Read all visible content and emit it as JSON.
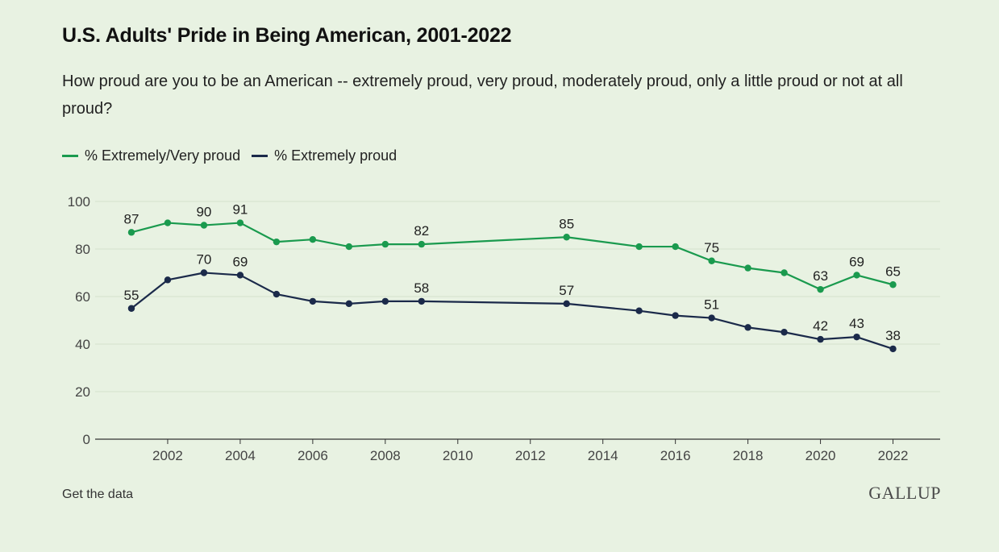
{
  "header": {
    "title": "U.S. Adults' Pride in Being American, 2001-2022",
    "subtitle": "How proud are you to be an American -- extremely proud, very proud, moderately proud, only a little proud or not at all proud?"
  },
  "footer": {
    "get_data_label": "Get the data",
    "logo_text": "GALLUP"
  },
  "colors": {
    "extremely_very": "#1a9a4e",
    "extremely": "#1b2a4a",
    "grid": "#d3e3cc",
    "axis": "#333333",
    "background": "#e8f2e2"
  },
  "chart_data": {
    "type": "line",
    "title": "U.S. Adults' Pride in Being American, 2001-2022",
    "xlabel": "",
    "ylabel": "",
    "xlim": [
      2000,
      2023.3
    ],
    "ylim": [
      0,
      100
    ],
    "x_ticks": [
      2002,
      2004,
      2006,
      2008,
      2010,
      2012,
      2014,
      2016,
      2018,
      2020,
      2022
    ],
    "y_ticks": [
      0,
      20,
      40,
      60,
      80,
      100
    ],
    "grid": true,
    "legend_position": "top-left",
    "series": [
      {
        "name": "% Extremely/Very proud",
        "color": "#1a9a4e",
        "x": [
          2001,
          2002,
          2003,
          2004,
          2005,
          2006,
          2007,
          2008,
          2009,
          2013,
          2015,
          2016,
          2017,
          2018,
          2019,
          2020,
          2021,
          2022
        ],
        "values": [
          87,
          91,
          90,
          91,
          83,
          84,
          81,
          82,
          82,
          85,
          81,
          81,
          75,
          72,
          70,
          63,
          69,
          65
        ],
        "labeled_x": [
          2001,
          2003,
          2004,
          2009,
          2013,
          2017,
          2020,
          2021,
          2022
        ]
      },
      {
        "name": "% Extremely proud",
        "color": "#1b2a4a",
        "x": [
          2001,
          2002,
          2003,
          2004,
          2005,
          2006,
          2007,
          2008,
          2009,
          2013,
          2015,
          2016,
          2017,
          2018,
          2019,
          2020,
          2021,
          2022
        ],
        "values": [
          55,
          67,
          70,
          69,
          61,
          58,
          57,
          58,
          58,
          57,
          54,
          52,
          51,
          47,
          45,
          42,
          43,
          38
        ],
        "labeled_x": [
          2001,
          2003,
          2004,
          2009,
          2013,
          2017,
          2020,
          2021,
          2022
        ]
      }
    ]
  }
}
